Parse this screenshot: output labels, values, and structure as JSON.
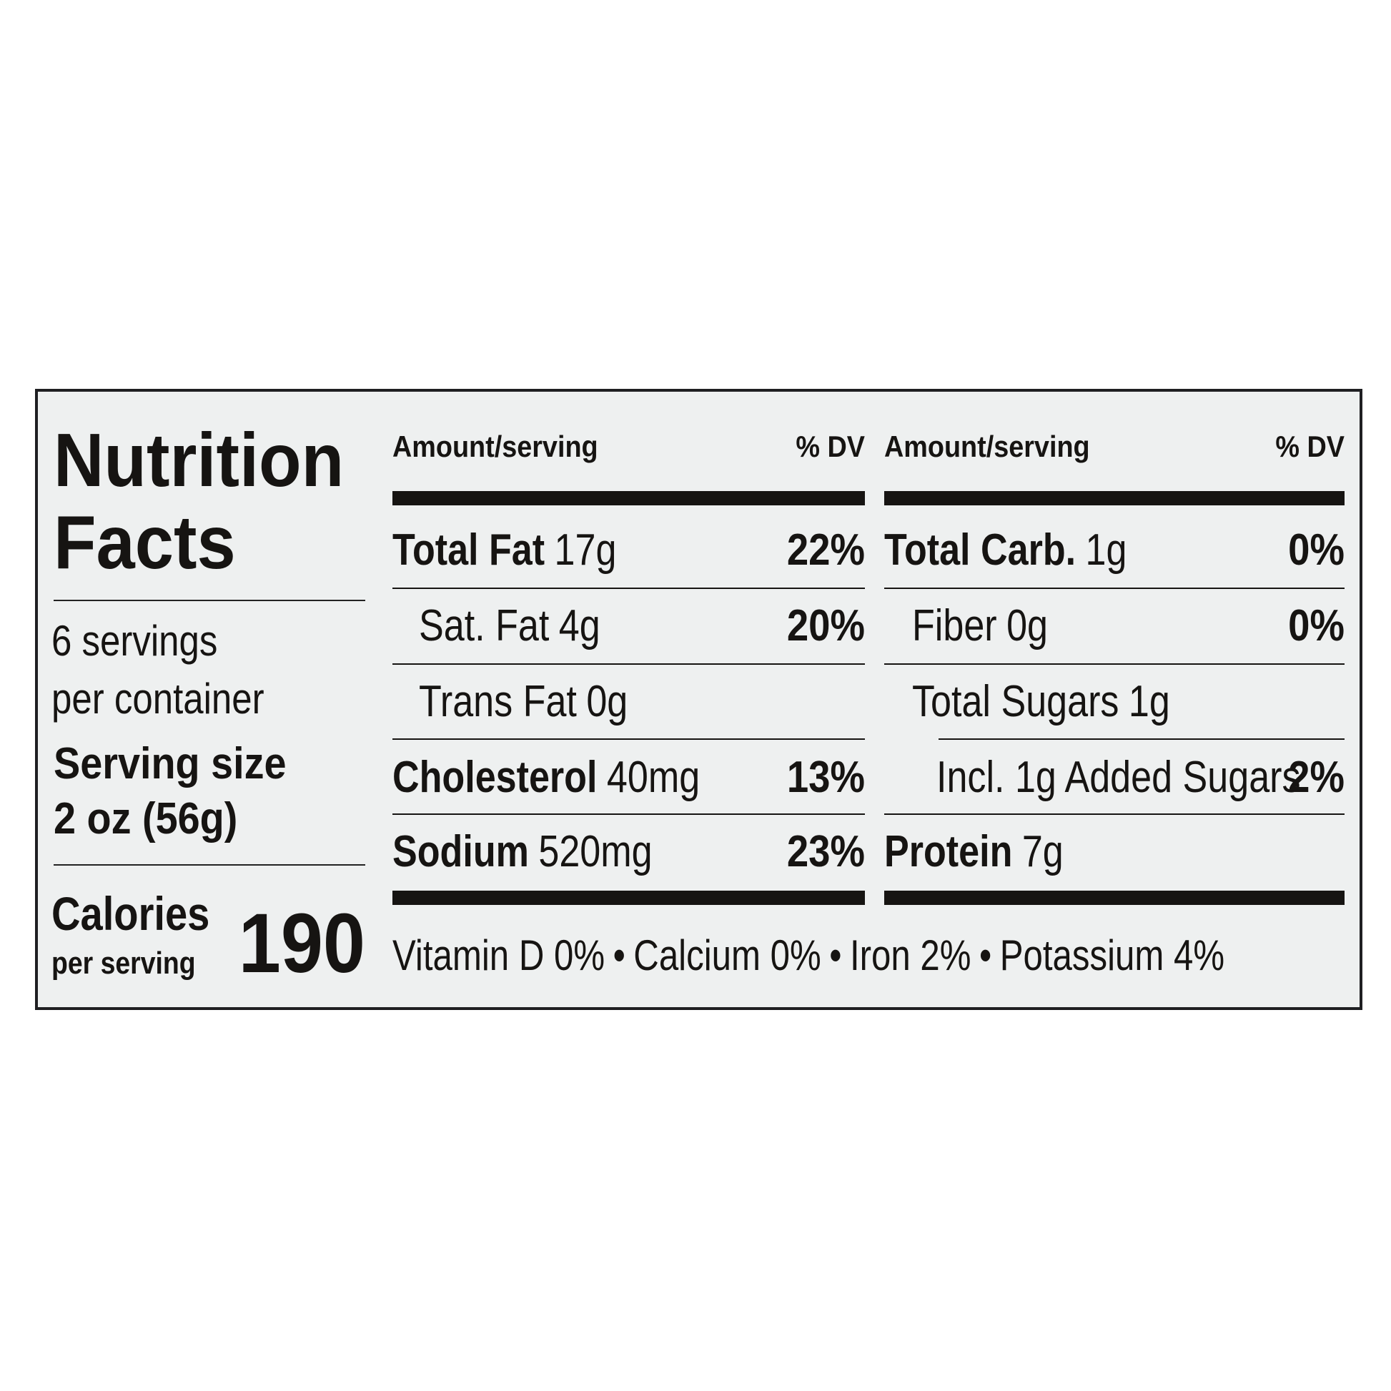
{
  "header": {
    "title_lines": [
      "Nutrition",
      "Facts"
    ]
  },
  "servings": {
    "lines": [
      "6 servings",
      "per container"
    ]
  },
  "serving_size": {
    "label": "Serving size",
    "value": "2 oz (56g)"
  },
  "calories": {
    "label": "Calories",
    "sublabel": "per serving",
    "value": "190"
  },
  "columns": [
    {
      "amount_header": "Amount/serving",
      "dv_header": "% DV",
      "rows": [
        {
          "name": "Total Fat",
          "amount": "17g",
          "dv": "22%"
        },
        {
          "name": "Sat. Fat",
          "amount": "4g",
          "dv": "20%"
        },
        {
          "name": "Trans Fat",
          "amount": "0g"
        },
        {
          "name": "Cholesterol",
          "amount": "40mg",
          "dv": "13%"
        },
        {
          "name": "Sodium",
          "amount": "520mg",
          "dv": "23%"
        }
      ]
    },
    {
      "amount_header": "Amount/serving",
      "dv_header": "% DV",
      "rows": [
        {
          "name": "Total Carb.",
          "amount": "1g",
          "dv": "0%"
        },
        {
          "name": "Fiber",
          "amount": "0g",
          "dv": "0%"
        },
        {
          "name": "Total Sugars",
          "amount": "1g"
        },
        {
          "name": "Incl. 1g Added Sugars",
          "dv": "2%"
        },
        {
          "name": "Protein",
          "amount": "7g"
        }
      ]
    }
  ],
  "footer": {
    "items": [
      "Vitamin D 0%",
      "Calcium 0%",
      "Iron 2%",
      "Potassium 4%"
    ]
  }
}
